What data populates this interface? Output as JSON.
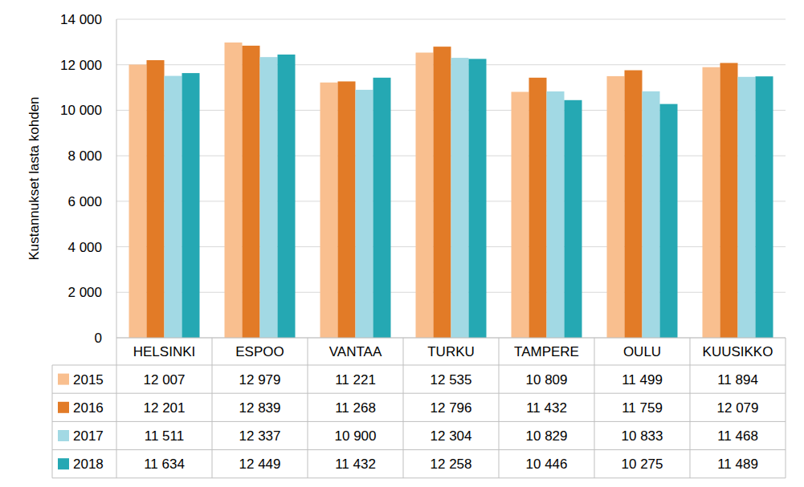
{
  "chart_data": {
    "type": "bar",
    "y_label": "Kustannukset lasta kohden",
    "categories": [
      "HELSINKI",
      "ESPOO",
      "VANTAA",
      "TURKU",
      "TAMPERE",
      "OULU",
      "KUUSIKKO"
    ],
    "series": [
      {
        "name": "2015",
        "color": "#f9bf8f",
        "values": [
          12007,
          12979,
          11221,
          12535,
          10809,
          11499,
          11894
        ],
        "value_labels": [
          "12 007",
          "12 979",
          "11 221",
          "12 535",
          "10 809",
          "11 499",
          "11 894"
        ]
      },
      {
        "name": "2016",
        "color": "#e27b27",
        "values": [
          12201,
          12839,
          11268,
          12796,
          11432,
          11759,
          12079
        ],
        "value_labels": [
          "12 201",
          "12 839",
          "11 268",
          "12 796",
          "11 432",
          "11 759",
          "12 079"
        ]
      },
      {
        "name": "2017",
        "color": "#a2d9e4",
        "values": [
          11511,
          12337,
          10900,
          12304,
          10829,
          10833,
          11468
        ],
        "value_labels": [
          "11 511",
          "12 337",
          "10 900",
          "12 304",
          "10 829",
          "10 833",
          "11 468"
        ]
      },
      {
        "name": "2018",
        "color": "#25a8b3",
        "values": [
          11634,
          12449,
          11432,
          12258,
          10446,
          10275,
          11489
        ],
        "value_labels": [
          "11 634",
          "12 449",
          "11 432",
          "12 258",
          "10 446",
          "10 275",
          "11 489"
        ]
      }
    ],
    "ylim": [
      0,
      14000
    ],
    "yticks": [
      0,
      {
        "value": 2000,
        "label": "2 000"
      },
      {
        "value": 4000,
        "label": "4 000"
      },
      {
        "value": 6000,
        "label": "6 000"
      },
      {
        "value": 8000,
        "label": "8 000"
      },
      {
        "value": 10000,
        "label": "10 000"
      },
      {
        "value": 12000,
        "label": "12 000"
      },
      {
        "value": 14000,
        "label": "14 000"
      }
    ],
    "grid": true
  }
}
